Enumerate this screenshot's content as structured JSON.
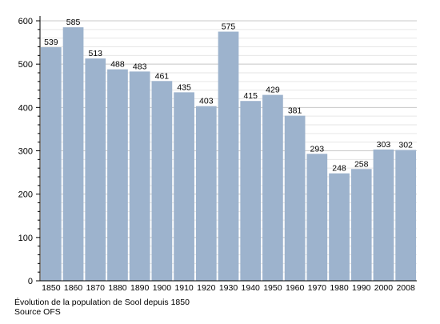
{
  "chart_data": {
    "type": "bar",
    "categories": [
      "1850",
      "1860",
      "1870",
      "1880",
      "1890",
      "1900",
      "1910",
      "1920",
      "1930",
      "1940",
      "1950",
      "1960",
      "1970",
      "1980",
      "1990",
      "2000",
      "2008"
    ],
    "values": [
      539,
      585,
      513,
      488,
      483,
      461,
      435,
      403,
      575,
      415,
      429,
      381,
      293,
      248,
      258,
      303,
      302
    ],
    "ylim": [
      0,
      600
    ],
    "yticks": [
      0,
      100,
      200,
      300,
      400,
      500,
      600
    ],
    "grid": true,
    "legend": "none",
    "bar_color": "#9db3cd",
    "grid_color": "#c8c8c8"
  },
  "caption": {
    "line1": "Évolution de la population de Sool depuis 1850",
    "line2": "Source OFS"
  }
}
